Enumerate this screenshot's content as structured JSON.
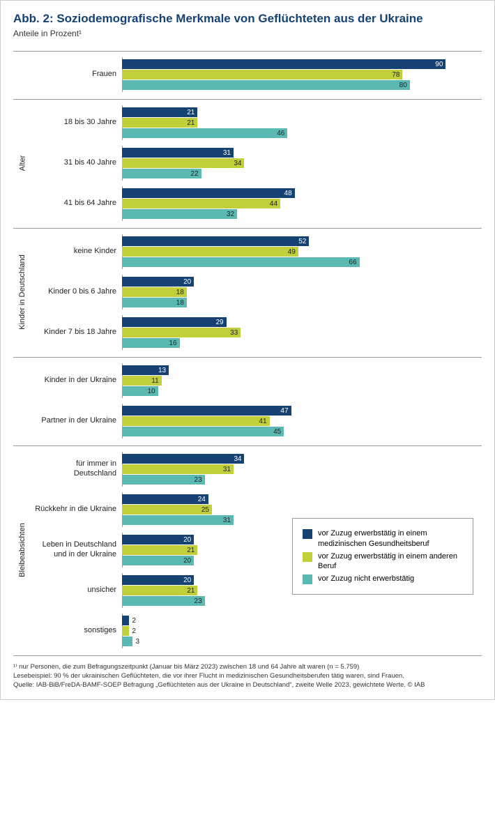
{
  "title": "Abb. 2: Soziodemografische Merkmale von Geflüchteten aus der Ukraine",
  "subtitle": "Anteile in Prozent¹",
  "xmax": 100,
  "series": [
    {
      "key": "s1",
      "label": "vor Zuzug erwerbstätig in einem medizinischen Gesundheitsberuf",
      "color": "#154273",
      "text_inside": "#ffffff"
    },
    {
      "key": "s2",
      "label": "vor Zuzug erwerbstätig in einem anderen Beruf",
      "color": "#c0cf3a",
      "text_inside": "#222222"
    },
    {
      "key": "s3",
      "label": "vor Zuzug nicht erwerbstätig",
      "color": "#5bb9b3",
      "text_inside": "#222222"
    }
  ],
  "sections": [
    {
      "label": "",
      "rows": [
        {
          "label": "Frauen",
          "values": [
            90,
            78,
            80
          ]
        }
      ]
    },
    {
      "label": "Alter",
      "rows": [
        {
          "label": "18 bis 30 Jahre",
          "values": [
            21,
            21,
            46
          ]
        },
        {
          "label": "31 bis 40 Jahre",
          "values": [
            31,
            34,
            22
          ]
        },
        {
          "label": "41 bis 64 Jahre",
          "values": [
            48,
            44,
            32
          ]
        }
      ]
    },
    {
      "label": "Kinder in Deutschland",
      "rows": [
        {
          "label": "keine Kinder",
          "values": [
            52,
            49,
            66
          ]
        },
        {
          "label": "Kinder 0 bis 6 Jahre",
          "values": [
            20,
            18,
            18
          ]
        },
        {
          "label": "Kinder 7 bis 18 Jahre",
          "values": [
            29,
            33,
            16
          ]
        }
      ]
    },
    {
      "label": "",
      "rows": [
        {
          "label": "Kinder in der Ukraine",
          "values": [
            13,
            11,
            10
          ]
        },
        {
          "label": "Partner in der Ukraine",
          "values": [
            47,
            41,
            45
          ]
        }
      ]
    },
    {
      "label": "Bleibeabsichten",
      "rows": [
        {
          "label": "für immer in Deutschland",
          "values": [
            34,
            31,
            23
          ]
        },
        {
          "label": "Rückkehr in die Ukraine",
          "values": [
            24,
            25,
            31
          ]
        },
        {
          "label": "Leben in Deutschland und in der Ukraine",
          "values": [
            20,
            21,
            20
          ]
        },
        {
          "label": "unsicher",
          "values": [
            20,
            21,
            23
          ]
        },
        {
          "label": "sonstiges",
          "values": [
            2,
            2,
            3
          ]
        }
      ]
    }
  ],
  "footnote_1": "¹⁾ nur Personen, die zum Befragungszeitpunkt (Januar bis März 2023) zwischen 18 und 64 Jahre alt waren (n = 5.759)",
  "footnote_2": "Lesebeispiel: 90 % der ukrainischen Geflüchteten, die vor ihrer Flucht in medizinischen Gesundheitsberufen tätig waren, sind Frauen.",
  "footnote_3": "Quelle: IAB-BiB/FreDA-BAMF-SOEP Befragung „Geflüchteten aus der Ukraine in Deutschland“, zweite Welle 2023, gewichtete Werte.   © IAB"
}
